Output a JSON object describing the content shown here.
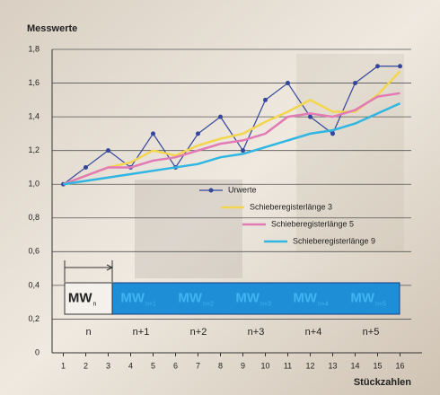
{
  "chart_data": {
    "type": "line",
    "title": "Messwerte",
    "x_label": "Stückzahlen",
    "x": [
      1,
      2,
      3,
      4,
      5,
      6,
      7,
      8,
      9,
      10,
      11,
      12,
      13,
      14,
      15,
      16
    ],
    "series": [
      {
        "name": "Urwerte",
        "color": "#34469c",
        "marker": true,
        "values": [
          1.0,
          1.1,
          1.2,
          1.1,
          1.3,
          1.1,
          1.3,
          1.4,
          1.2,
          1.5,
          1.6,
          1.4,
          1.3,
          1.6,
          1.7,
          1.7
        ]
      },
      {
        "name": "Schieberegisterlänge 3",
        "color": "#f3d64e",
        "marker": false,
        "values": [
          1.0,
          1.05,
          1.1,
          1.13,
          1.2,
          1.17,
          1.23,
          1.27,
          1.3,
          1.37,
          1.43,
          1.5,
          1.43,
          1.43,
          1.53,
          1.67
        ]
      },
      {
        "name": "Schieberegisterlänge 5",
        "color": "#e27ab6",
        "marker": false,
        "values": [
          1.0,
          1.05,
          1.1,
          1.1,
          1.14,
          1.16,
          1.2,
          1.24,
          1.26,
          1.3,
          1.4,
          1.42,
          1.4,
          1.44,
          1.52,
          1.54
        ]
      },
      {
        "name": "Schieberegisterlänge 9",
        "color": "#2fb6e2",
        "marker": false,
        "values": [
          1.0,
          1.02,
          1.04,
          1.06,
          1.08,
          1.1,
          1.12,
          1.16,
          1.18,
          1.22,
          1.26,
          1.3,
          1.32,
          1.36,
          1.42,
          1.48
        ]
      }
    ],
    "xlim": [
      0.5,
      16.5
    ],
    "xticks": [
      1,
      2,
      3,
      4,
      5,
      6,
      7,
      8,
      9,
      10,
      11,
      12,
      13,
      14,
      15,
      16
    ],
    "ylim": [
      0,
      1.8
    ],
    "yticks": [
      0,
      {
        "value": 0.2,
        "label": "0,2"
      },
      {
        "value": 0.4,
        "label": "0,4"
      },
      {
        "value": 0.6,
        "label": "0,6"
      },
      {
        "value": 0.8,
        "label": "0,8"
      },
      {
        "value": 1,
        "label": "1,0"
      },
      {
        "value": 1.2,
        "label": "1,2"
      },
      {
        "value": 1.4,
        "label": "1,4"
      },
      {
        "value": 1.6,
        "label": "1,6"
      },
      {
        "value": 1.8,
        "label": "1,8"
      }
    ],
    "grid": true,
    "legend": "right",
    "windows": [
      {
        "label": "MW",
        "sub": "n",
        "index": "n"
      },
      {
        "label": "MW",
        "sub": "n+1",
        "index": "n+1"
      },
      {
        "label": "MW",
        "sub": "n+2",
        "index": "n+2"
      },
      {
        "label": "MW",
        "sub": "n+3",
        "index": "n+3"
      },
      {
        "label": "MW",
        "sub": "n+4",
        "index": "n+4"
      },
      {
        "label": "MW",
        "sub": "n+5",
        "index": "n+5"
      }
    ]
  }
}
